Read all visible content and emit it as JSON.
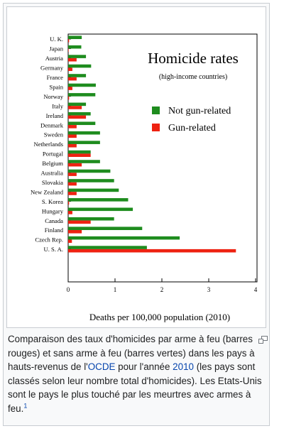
{
  "chart_data": {
    "type": "bar",
    "orientation": "horizontal",
    "title": "Homicide rates",
    "subtitle": "(high-income countries)",
    "xlabel": "Deaths per 100,000 population (2010)",
    "xlim": [
      0,
      4
    ],
    "xticks": [
      "0",
      "1",
      "2",
      "3",
      "4"
    ],
    "grid": false,
    "legend_position": "top-right",
    "categories": [
      "U. K.",
      "Japan",
      "Austria",
      "Germany",
      "France",
      "Spain",
      "Norway",
      "Italy",
      "Ireland",
      "Denmark",
      "Sweden",
      "Netherlands",
      "Portugal",
      "Belgium",
      "Australia",
      "Slovakia",
      "New Zealand",
      "S. Korea",
      "Hungary",
      "Canada",
      "Finland",
      "Czech Rep.",
      "U. S. A."
    ],
    "series": [
      {
        "name": "Not gun-related",
        "color": "#1e8c1e",
        "values": [
          0.29,
          0.28,
          0.38,
          0.49,
          0.38,
          0.59,
          0.58,
          0.38,
          0.48,
          0.58,
          0.68,
          0.68,
          0.48,
          0.68,
          0.9,
          0.98,
          1.08,
          1.28,
          1.38,
          0.98,
          1.58,
          2.38,
          1.68
        ]
      },
      {
        "name": "Gun-related",
        "color": "#ee2211",
        "values": [
          0.02,
          0.01,
          0.18,
          0.09,
          0.18,
          0.09,
          0.02,
          0.29,
          0.38,
          0.18,
          0.18,
          0.18,
          0.48,
          0.29,
          0.18,
          0.18,
          0.18,
          0.02,
          0.09,
          0.48,
          0.29,
          0.08,
          3.58
        ]
      }
    ]
  },
  "caption": {
    "part1": "Comparaison des taux d'homicides par arme à feu (barres rouges) et sans arme à feu (barres vertes) dans les pays à hauts-revenus de l'",
    "link_ocde": "OCDE",
    "part2": " pour l'année ",
    "link_year": "2010",
    "part3": " (les pays sont classés selon leur nombre total d'homicides). Les Etats-Unis sont le pays le plus touché par les meurtres avec armes à feu.",
    "footnote": "1"
  },
  "icons": {
    "magnify": "magnify-clip-icon"
  }
}
